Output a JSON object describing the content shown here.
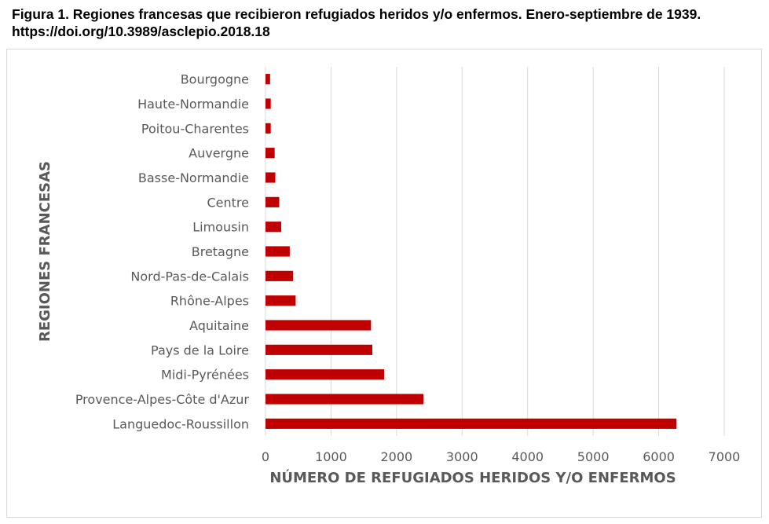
{
  "caption": "Figura 1. Regiones francesas que recibieron refugiados heridos y/o enfermos. Enero-septiembre de 1939. https://doi.org/10.3989/asclepio.2018.18",
  "chart_data": {
    "type": "bar",
    "orientation": "horizontal",
    "categories": [
      "Languedoc-Roussillon",
      "Provence-Alpes-Côte d'Azur",
      "Midi-Pyrénées",
      "Pays de la Loire",
      "Aquitaine",
      "Rhône-Alpes",
      "Nord-Pas-de-Calais",
      "Bretagne",
      "Limousin",
      "Centre",
      "Basse-Normandie",
      "Auvergne",
      "Poitou-Charentes",
      "Haute-Normandie",
      "Bourgogne"
    ],
    "values": [
      6270,
      2410,
      1810,
      1630,
      1610,
      460,
      420,
      370,
      240,
      210,
      150,
      140,
      80,
      80,
      70
    ],
    "xlabel": "NÚMERO DE REFUGIADOS HERIDOS Y/O ENFERMOS",
    "ylabel": "REGIONES FRANCESAS",
    "xlim": [
      0,
      7000
    ],
    "xticks": [
      0,
      1000,
      2000,
      3000,
      4000,
      5000,
      6000,
      7000
    ],
    "grid": "vertical",
    "legend": "none",
    "bar_color": "#c00000"
  }
}
